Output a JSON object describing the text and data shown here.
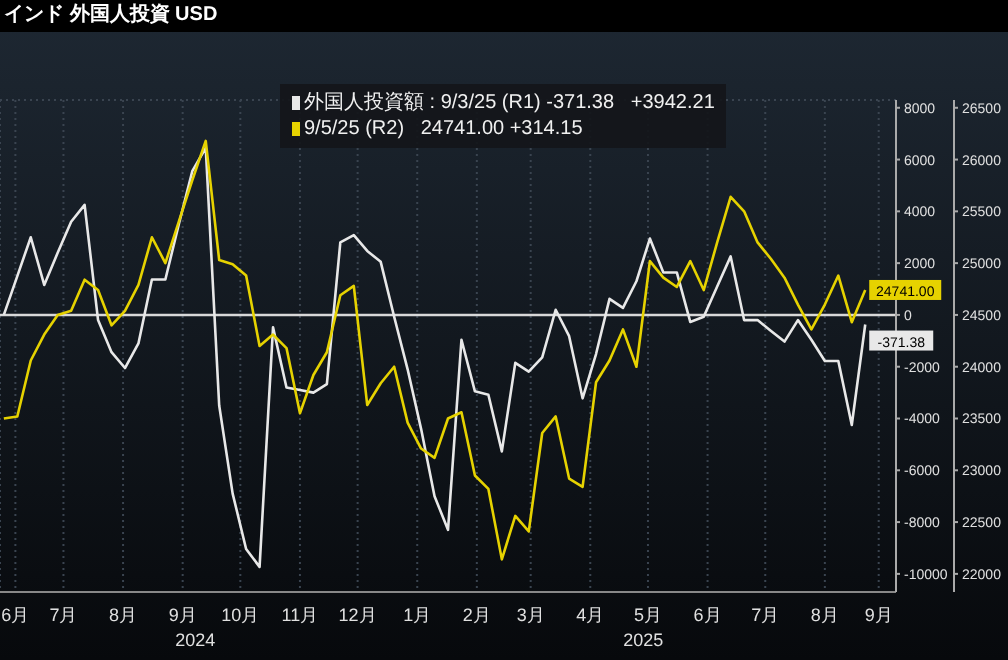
{
  "chart_data": {
    "type": "line",
    "title": "インド 外国人投資 USD",
    "x": [
      "2024-06-14",
      "2024-06-21",
      "2024-06-28",
      "2024-07-05",
      "2024-07-12",
      "2024-07-19",
      "2024-07-26",
      "2024-08-02",
      "2024-08-09",
      "2024-08-16",
      "2024-08-23",
      "2024-08-30",
      "2024-09-06",
      "2024-09-13",
      "2024-09-20",
      "2024-09-27",
      "2024-10-04",
      "2024-10-11",
      "2024-10-18",
      "2024-10-25",
      "2024-11-01",
      "2024-11-08",
      "2024-11-15",
      "2024-11-22",
      "2024-11-29",
      "2024-12-06",
      "2024-12-13",
      "2024-12-20",
      "2024-12-27",
      "2025-01-03",
      "2025-01-10",
      "2025-01-17",
      "2025-01-24",
      "2025-01-31",
      "2025-02-07",
      "2025-02-14",
      "2025-02-21",
      "2025-02-28",
      "2025-03-07",
      "2025-03-14",
      "2025-03-21",
      "2025-03-28",
      "2025-04-04",
      "2025-04-11",
      "2025-04-18",
      "2025-04-25",
      "2025-05-02",
      "2025-05-09",
      "2025-05-16",
      "2025-05-23",
      "2025-05-30",
      "2025-06-06",
      "2025-06-13",
      "2025-06-20",
      "2025-06-27",
      "2025-07-04",
      "2025-07-11",
      "2025-07-18",
      "2025-07-25",
      "2025-08-01",
      "2025-08-08",
      "2025-08-15",
      "2025-08-22",
      "2025-08-29",
      "2025-09-05"
    ],
    "series": [
      {
        "name": "外国人投資額 : 9/3/25 (R1) -371.38   +3942.21",
        "color": "#e8e8e8",
        "values": [
          0,
          1500,
          3000,
          1160,
          2400,
          3600,
          4250,
          -200,
          -1440,
          -2050,
          -1100,
          1370,
          1370,
          3500,
          5550,
          6450,
          -3500,
          -6900,
          -9040,
          -9730,
          -480,
          -2800,
          -2900,
          -3000,
          -2670,
          2800,
          3080,
          2470,
          2050,
          -70,
          -2100,
          -4400,
          -7000,
          -8300,
          -960,
          -2950,
          -3080,
          -5270,
          -1850,
          -2190,
          -1640,
          200,
          -820,
          -3220,
          -1510,
          620,
          270,
          1300,
          2950,
          1640,
          1640,
          -270,
          -70,
          1100,
          2260,
          -200,
          -200,
          -620,
          -1030,
          -200,
          -960,
          -1780,
          -1780,
          -4250,
          -371.38
        ],
        "value_labels": [
          null,
          null,
          null,
          null,
          null,
          null,
          null,
          null,
          null,
          null,
          null,
          null,
          null,
          null,
          null,
          null,
          null,
          null,
          null,
          null,
          null,
          null,
          null,
          null,
          null,
          null,
          null,
          null,
          null,
          null,
          null,
          null,
          null,
          null,
          null,
          null,
          null,
          null,
          null,
          null,
          null,
          null,
          null,
          null,
          null,
          null,
          null,
          null,
          null,
          null,
          null,
          null,
          null,
          null,
          null,
          null,
          null,
          null,
          null,
          null,
          null,
          null,
          null,
          null,
          "-371.38"
        ]
      },
      {
        "name": "9/5/25 (R2)   24741.00 +314.15",
        "color": "#e6d200",
        "axis": "y2",
        "values": [
          23500,
          23520,
          24060,
          24310,
          24500,
          24540,
          24840,
          24740,
          24400,
          24540,
          24790,
          25250,
          25000,
          25400,
          25800,
          26180,
          25030,
          24990,
          24880,
          24200,
          24310,
          24180,
          23550,
          23920,
          24140,
          24690,
          24780,
          23630,
          23840,
          24000,
          23460,
          23210,
          23120,
          23500,
          23560,
          22950,
          22820,
          22140,
          22560,
          22410,
          23360,
          23520,
          22920,
          22840,
          23850,
          24060,
          24360,
          24000,
          25020,
          24860,
          24770,
          25020,
          24740,
          25200,
          25640,
          25500,
          25200,
          25040,
          24860,
          24600,
          24360,
          24600,
          24880,
          24430,
          24741
        ],
        "value_labels": [
          null,
          null,
          null,
          null,
          null,
          null,
          null,
          null,
          null,
          null,
          null,
          null,
          null,
          null,
          null,
          null,
          null,
          null,
          null,
          null,
          null,
          null,
          null,
          null,
          null,
          null,
          null,
          null,
          null,
          null,
          null,
          null,
          null,
          null,
          null,
          null,
          null,
          null,
          null,
          null,
          null,
          null,
          null,
          null,
          null,
          null,
          null,
          null,
          null,
          null,
          null,
          null,
          null,
          null,
          null,
          null,
          null,
          null,
          null,
          null,
          null,
          null,
          null,
          null,
          "24741.00"
        ]
      }
    ],
    "xlim": [
      "2024-06-12",
      "2025-09-21"
    ],
    "xticks": [
      {
        "value": "2024-06-20",
        "label": "6月"
      },
      {
        "value": "2024-07-15",
        "label": "7月"
      },
      {
        "value": "2024-08-15",
        "label": "8月"
      },
      {
        "value": "2024-09-15",
        "label": "9月"
      },
      {
        "value": "2024-10-15",
        "label": "10月"
      },
      {
        "value": "2024-11-15",
        "label": "11月"
      },
      {
        "value": "2024-12-15",
        "label": "12月"
      },
      {
        "value": "2025-01-15",
        "label": "1月"
      },
      {
        "value": "2025-02-15",
        "label": "2月"
      },
      {
        "value": "2025-03-15",
        "label": "3月"
      },
      {
        "value": "2025-04-15",
        "label": "4月"
      },
      {
        "value": "2025-05-15",
        "label": "5月"
      },
      {
        "value": "2025-06-15",
        "label": "6月"
      },
      {
        "value": "2025-07-15",
        "label": "7月"
      },
      {
        "value": "2025-08-15",
        "label": "8月"
      },
      {
        "value": "2025-09-12",
        "label": "9月"
      }
    ],
    "ylim": [
      -10700,
      8300
    ],
    "yticks": [
      -10000,
      -8000,
      -6000,
      -4000,
      -2000,
      0,
      2000,
      4000,
      6000,
      8000
    ],
    "y2lim": [
      21825,
      26575
    ],
    "y2ticks": [
      22000,
      22500,
      23000,
      23500,
      24000,
      24500,
      25000,
      25500,
      26000,
      26500
    ],
    "ref_lines": [
      {
        "axis": "y",
        "value": 0,
        "color": "#d8d8d8"
      }
    ],
    "annotations": [
      "2024",
      "2025"
    ],
    "grid": true,
    "legend": "top",
    "marker": "none",
    "line_style": "solid"
  }
}
